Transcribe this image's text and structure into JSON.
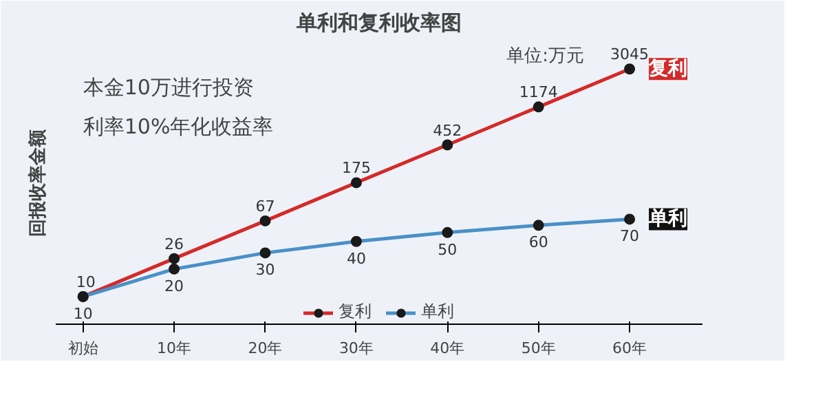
{
  "chart_data": {
    "type": "line",
    "title": "单利和复利收率图",
    "ylabel": "回报收率金额",
    "categories": [
      "初始",
      "10年",
      "20年",
      "30年",
      "40年",
      "50年",
      "60年"
    ],
    "series": [
      {
        "name": "复利",
        "color": "#d42a2a",
        "values": [
          10,
          26,
          67,
          175,
          452,
          1174,
          3045
        ]
      },
      {
        "name": "单利",
        "color": "#4a90c8",
        "values": [
          10,
          20,
          30,
          40,
          50,
          60,
          70
        ]
      }
    ],
    "log": true,
    "ylim": [
      5,
      6000
    ],
    "tick_labels": "x",
    "data_labels": true,
    "marker": "circle",
    "line_style": "solid",
    "grid": false,
    "legend": "bottom",
    "annotations": [
      "单位:万元",
      "本金10万进行投资",
      "利率10%年化收益率"
    ]
  }
}
